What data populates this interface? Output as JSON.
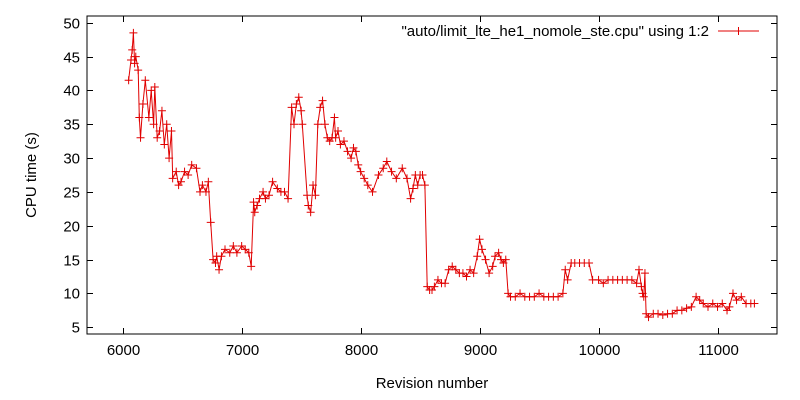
{
  "colors": {
    "series": "#e00000",
    "axis": "#000000",
    "background": "#ffffff"
  },
  "chart_data": {
    "type": "line",
    "xlabel": "Revision number",
    "ylabel": "CPU time (s)",
    "xlim": [
      5700,
      11500
    ],
    "ylim": [
      4,
      51
    ],
    "xticks": [
      6000,
      7000,
      8000,
      9000,
      10000,
      11000
    ],
    "yticks": [
      5,
      10,
      15,
      20,
      25,
      30,
      35,
      40,
      45,
      50
    ],
    "grid": false,
    "legend_position": "top-right",
    "series": [
      {
        "name": "\"auto/limit_lte_he1_nomole_ste.cpu\" using 1:2",
        "marker": "plus",
        "points": [
          [
            6050,
            41.5
          ],
          [
            6070,
            44.5
          ],
          [
            6080,
            46
          ],
          [
            6090,
            48.5
          ],
          [
            6100,
            44
          ],
          [
            6110,
            45
          ],
          [
            6130,
            43
          ],
          [
            6140,
            36
          ],
          [
            6150,
            33
          ],
          [
            6170,
            38
          ],
          [
            6190,
            41.5
          ],
          [
            6220,
            36
          ],
          [
            6240,
            40
          ],
          [
            6260,
            35
          ],
          [
            6270,
            40.5
          ],
          [
            6290,
            33
          ],
          [
            6310,
            34
          ],
          [
            6330,
            37
          ],
          [
            6350,
            32
          ],
          [
            6370,
            35
          ],
          [
            6390,
            30
          ],
          [
            6410,
            34
          ],
          [
            6420,
            27
          ],
          [
            6450,
            28
          ],
          [
            6470,
            26
          ],
          [
            6490,
            26.5
          ],
          [
            6520,
            28
          ],
          [
            6550,
            27.5
          ],
          [
            6580,
            29
          ],
          [
            6620,
            28.5
          ],
          [
            6650,
            25
          ],
          [
            6670,
            26
          ],
          [
            6700,
            25
          ],
          [
            6720,
            26.5
          ],
          [
            6740,
            20.5
          ],
          [
            6760,
            15
          ],
          [
            6780,
            14.5
          ],
          [
            6790,
            15.5
          ],
          [
            6810,
            13.5
          ],
          [
            6830,
            15.5
          ],
          [
            6860,
            16.5
          ],
          [
            6900,
            16
          ],
          [
            6930,
            17
          ],
          [
            6960,
            16
          ],
          [
            7000,
            17
          ],
          [
            7030,
            16.5
          ],
          [
            7060,
            16
          ],
          [
            7080,
            14
          ],
          [
            7100,
            23.5
          ],
          [
            7110,
            22
          ],
          [
            7130,
            23
          ],
          [
            7150,
            24
          ],
          [
            7180,
            25
          ],
          [
            7200,
            24
          ],
          [
            7230,
            24.5
          ],
          [
            7260,
            26.5
          ],
          [
            7300,
            25.5
          ],
          [
            7330,
            25
          ],
          [
            7360,
            25
          ],
          [
            7390,
            24
          ],
          [
            7420,
            37.5
          ],
          [
            7440,
            35
          ],
          [
            7460,
            38
          ],
          [
            7480,
            39
          ],
          [
            7500,
            37
          ],
          [
            7510,
            35
          ],
          [
            7550,
            24.5
          ],
          [
            7560,
            23
          ],
          [
            7580,
            22
          ],
          [
            7600,
            26
          ],
          [
            7620,
            24.5
          ],
          [
            7640,
            35
          ],
          [
            7660,
            37.5
          ],
          [
            7680,
            38.5
          ],
          [
            7700,
            35
          ],
          [
            7720,
            33
          ],
          [
            7740,
            32.5
          ],
          [
            7760,
            33
          ],
          [
            7780,
            36
          ],
          [
            7790,
            33
          ],
          [
            7810,
            34
          ],
          [
            7830,
            32
          ],
          [
            7860,
            32.5
          ],
          [
            7890,
            31
          ],
          [
            7920,
            30
          ],
          [
            7940,
            31.5
          ],
          [
            7960,
            31
          ],
          [
            7980,
            29
          ],
          [
            8000,
            28
          ],
          [
            8030,
            27
          ],
          [
            8060,
            26
          ],
          [
            8100,
            25
          ],
          [
            8150,
            27.5
          ],
          [
            8190,
            28.5
          ],
          [
            8220,
            29.5
          ],
          [
            8260,
            28
          ],
          [
            8300,
            27
          ],
          [
            8350,
            28.5
          ],
          [
            8390,
            27
          ],
          [
            8420,
            24
          ],
          [
            8440,
            25.5
          ],
          [
            8460,
            27.5
          ],
          [
            8480,
            26
          ],
          [
            8500,
            27.5
          ],
          [
            8520,
            27.5
          ],
          [
            8540,
            26
          ],
          [
            8560,
            11
          ],
          [
            8580,
            10.5
          ],
          [
            8600,
            10.5
          ],
          [
            8620,
            11
          ],
          [
            8650,
            12
          ],
          [
            8680,
            11.5
          ],
          [
            8710,
            11.5
          ],
          [
            8740,
            13.5
          ],
          [
            8770,
            14
          ],
          [
            8800,
            13.5
          ],
          [
            8830,
            13
          ],
          [
            8860,
            13
          ],
          [
            8890,
            12.5
          ],
          [
            8920,
            13.5
          ],
          [
            8950,
            13
          ],
          [
            8980,
            15.5
          ],
          [
            9000,
            18
          ],
          [
            9020,
            16.5
          ],
          [
            9050,
            15
          ],
          [
            9080,
            13
          ],
          [
            9110,
            14
          ],
          [
            9130,
            15.5
          ],
          [
            9160,
            16
          ],
          [
            9180,
            15
          ],
          [
            9200,
            14.5
          ],
          [
            9220,
            15
          ],
          [
            9240,
            10
          ],
          [
            9260,
            9.5
          ],
          [
            9300,
            9.5
          ],
          [
            9340,
            10
          ],
          [
            9380,
            9.5
          ],
          [
            9420,
            9.5
          ],
          [
            9460,
            9.5
          ],
          [
            9500,
            10
          ],
          [
            9540,
            9.5
          ],
          [
            9580,
            9.5
          ],
          [
            9620,
            9.5
          ],
          [
            9660,
            9.5
          ],
          [
            9700,
            10
          ],
          [
            9720,
            13.5
          ],
          [
            9740,
            12
          ],
          [
            9770,
            14.5
          ],
          [
            9800,
            14.5
          ],
          [
            9840,
            14.5
          ],
          [
            9880,
            14.5
          ],
          [
            9920,
            14.5
          ],
          [
            9950,
            12
          ],
          [
            10000,
            12
          ],
          [
            10040,
            11.5
          ],
          [
            10080,
            12
          ],
          [
            10120,
            12
          ],
          [
            10160,
            12
          ],
          [
            10200,
            12
          ],
          [
            10240,
            12
          ],
          [
            10280,
            12
          ],
          [
            10320,
            11.5
          ],
          [
            10340,
            13.5
          ],
          [
            10360,
            11
          ],
          [
            10370,
            10
          ],
          [
            10380,
            9.5
          ],
          [
            10390,
            13
          ],
          [
            10400,
            7
          ],
          [
            10420,
            6.5
          ],
          [
            10460,
            7
          ],
          [
            10500,
            7
          ],
          [
            10540,
            6.8
          ],
          [
            10580,
            7
          ],
          [
            10620,
            7
          ],
          [
            10660,
            7.5
          ],
          [
            10700,
            7.5
          ],
          [
            10740,
            7.8
          ],
          [
            10780,
            8
          ],
          [
            10820,
            9.5
          ],
          [
            10850,
            9
          ],
          [
            10880,
            8.5
          ],
          [
            10920,
            8
          ],
          [
            10960,
            8.5
          ],
          [
            11000,
            8
          ],
          [
            11040,
            8.5
          ],
          [
            11080,
            7.5
          ],
          [
            11100,
            8
          ],
          [
            11130,
            10
          ],
          [
            11160,
            9
          ],
          [
            11200,
            9.5
          ],
          [
            11240,
            8.5
          ],
          [
            11280,
            8.5
          ],
          [
            11310,
            8.5
          ]
        ]
      }
    ]
  }
}
